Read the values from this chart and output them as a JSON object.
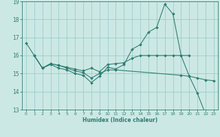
{
  "xlabel": "Humidex (Indice chaleur)",
  "bg_color": "#cce8e4",
  "grid_color": "#99cccc",
  "line_color": "#2d7d72",
  "xlim": [
    -0.5,
    23.5
  ],
  "ylim": [
    13,
    19
  ],
  "yticks": [
    13,
    14,
    15,
    16,
    17,
    18,
    19
  ],
  "xticks": [
    0,
    1,
    2,
    3,
    4,
    5,
    6,
    7,
    8,
    9,
    10,
    11,
    12,
    13,
    14,
    15,
    16,
    17,
    18,
    19,
    20,
    21,
    22,
    23
  ],
  "line1_x": [
    0,
    1,
    2,
    3,
    4,
    5,
    6,
    7,
    8,
    9,
    10,
    11,
    12,
    13,
    14,
    15,
    16,
    17,
    18,
    19,
    20,
    21,
    22,
    23
  ],
  "line1_y": [
    16.7,
    16.0,
    15.3,
    15.5,
    15.3,
    15.2,
    15.0,
    14.9,
    14.5,
    14.85,
    15.35,
    15.25,
    15.5,
    16.35,
    16.6,
    17.3,
    17.55,
    18.85,
    18.3,
    16.0,
    14.85,
    13.9,
    12.75,
    12.65
  ],
  "line2_x": [
    1,
    2,
    3,
    4,
    5,
    6,
    7,
    8,
    9,
    10,
    11,
    12,
    13,
    14,
    15,
    16,
    17,
    18,
    19,
    20
  ],
  "line2_y": [
    16.0,
    15.3,
    15.55,
    15.45,
    15.35,
    15.25,
    15.15,
    15.3,
    15.1,
    15.5,
    15.55,
    15.6,
    15.85,
    16.0,
    16.0,
    16.0,
    16.0,
    16.0,
    16.0,
    16.0
  ],
  "line3_x": [
    1,
    2,
    3,
    4,
    5,
    6,
    7,
    8,
    9,
    10,
    11,
    19,
    20,
    21,
    22,
    23
  ],
  "line3_y": [
    16.0,
    15.3,
    15.55,
    15.45,
    15.3,
    15.15,
    15.05,
    14.75,
    15.0,
    15.2,
    15.2,
    14.9,
    14.85,
    14.75,
    14.65,
    14.6
  ]
}
